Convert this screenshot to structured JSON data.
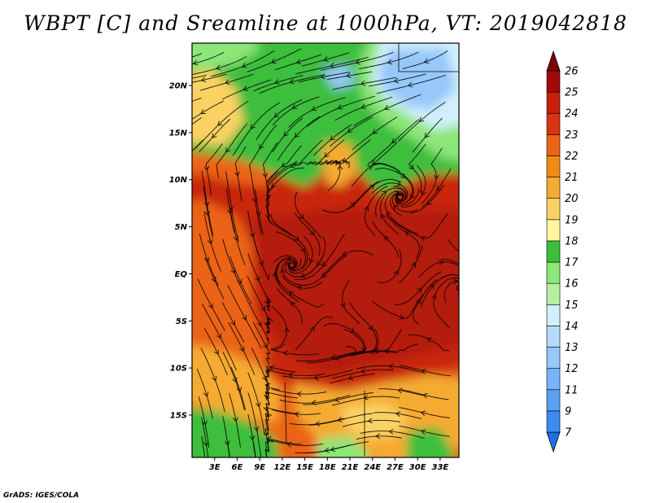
{
  "title": "WBPT [C] and Sreamline at 1000hPa, VT: 2019042818",
  "footer": "GrADS: IGES/COLA",
  "map": {
    "lat_range": [
      -19.5,
      24.5
    ],
    "lon_range": [
      0,
      35.5
    ],
    "lat_ticks": [
      {
        "value": 20,
        "label": "20N"
      },
      {
        "value": 15,
        "label": "15N"
      },
      {
        "value": 10,
        "label": "10N"
      },
      {
        "value": 5,
        "label": "5N"
      },
      {
        "value": 0,
        "label": "EQ"
      },
      {
        "value": -5,
        "label": "5S"
      },
      {
        "value": -10,
        "label": "10S"
      },
      {
        "value": -15,
        "label": "15S"
      }
    ],
    "lon_ticks": [
      {
        "value": 3,
        "label": "3E"
      },
      {
        "value": 6,
        "label": "6E"
      },
      {
        "value": 9,
        "label": "9E"
      },
      {
        "value": 12,
        "label": "12E"
      },
      {
        "value": 15,
        "label": "15E"
      },
      {
        "value": 18,
        "label": "18E"
      },
      {
        "value": 21,
        "label": "21E"
      },
      {
        "value": 24,
        "label": "24E"
      },
      {
        "value": 27,
        "label": "27E"
      },
      {
        "value": 30,
        "label": "30E"
      },
      {
        "value": 33,
        "label": "33E"
      }
    ]
  },
  "colorbar": {
    "levels": [
      "7",
      "9",
      "11",
      "12",
      "13",
      "14",
      "15",
      "16",
      "17",
      "18",
      "19",
      "20",
      "21",
      "22",
      "23",
      "24",
      "25",
      "26"
    ],
    "colors": [
      "#1e6ee6",
      "#3c8cf0",
      "#5aa0f5",
      "#78b4fa",
      "#96c8fa",
      "#b4dcfa",
      "#d2f0fa",
      "#b4f0a0",
      "#8ce678",
      "#3cbe3c",
      "#fff5a0",
      "#fad264",
      "#f5aa32",
      "#f08c14",
      "#eb6414",
      "#dc3214",
      "#c81e0a",
      "#a00a0a",
      "#7d0505"
    ]
  },
  "regions": [
    {
      "name": "warm-core",
      "color": "#b41e0a"
    },
    {
      "name": "hot-belt",
      "color": "#c8280a"
    },
    {
      "name": "orange-band",
      "color": "#eb6414"
    },
    {
      "name": "light-orange",
      "color": "#f5aa32"
    },
    {
      "name": "pale-yellow",
      "color": "#fad264"
    },
    {
      "name": "green-north",
      "color": "#3cbe3c"
    },
    {
      "name": "light-green",
      "color": "#8ce678"
    },
    {
      "name": "pale-blue",
      "color": "#96c8fa"
    },
    {
      "name": "light-cyan",
      "color": "#d2f0fa"
    }
  ]
}
